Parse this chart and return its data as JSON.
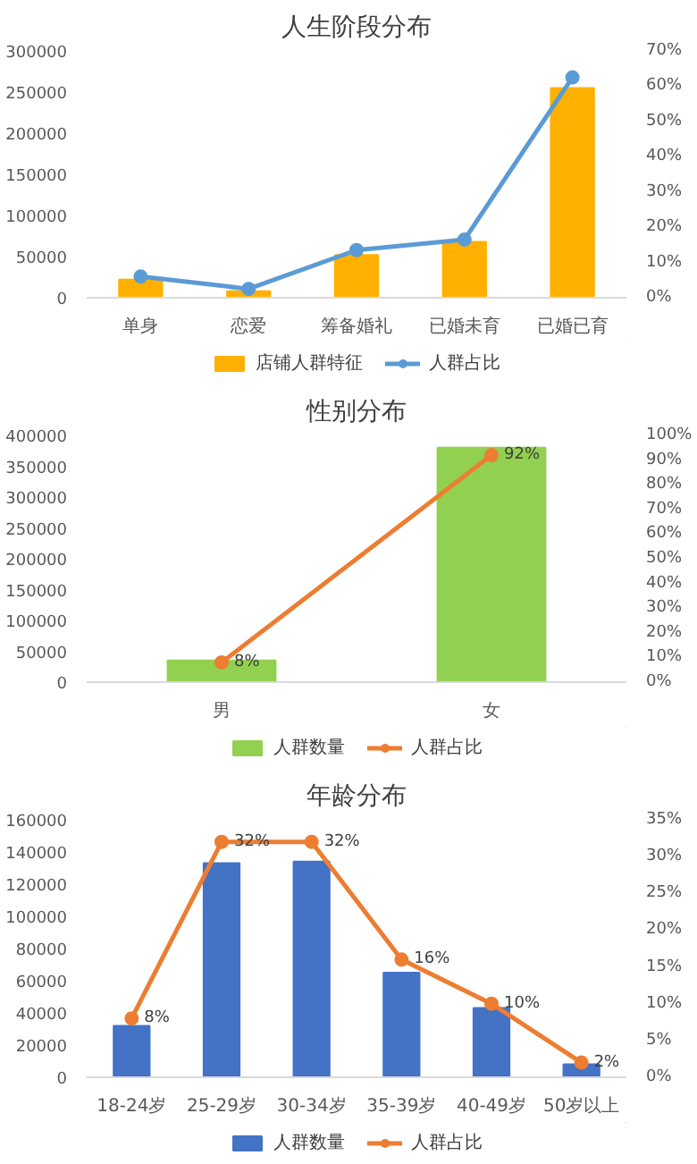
{
  "chart_data": [
    {
      "type": "bar",
      "title": "人生阶段分布",
      "categories": [
        "单身",
        "恋爱",
        "筹备婚礼",
        "已婚未育",
        "已婚已育"
      ],
      "ylim": [
        0,
        300000
      ],
      "yticks": [
        0,
        50000,
        100000,
        150000,
        200000,
        250000,
        300000
      ],
      "y2lim": [
        0,
        70
      ],
      "y2ticks": [
        {
          "value": 0,
          "label": "0%"
        },
        {
          "value": 10,
          "label": "10%"
        },
        {
          "value": 20,
          "label": "20%"
        },
        {
          "value": 30,
          "label": "30%"
        },
        {
          "value": 40,
          "label": "40%"
        },
        {
          "value": 50,
          "label": "50%"
        },
        {
          "value": 60,
          "label": "60%"
        },
        {
          "value": 70,
          "label": "70%"
        }
      ],
      "legend": "bottom",
      "grid": false,
      "series": [
        {
          "name": "店铺人群特征",
          "color": "#ffb000",
          "values": [
            22000,
            8000,
            52000,
            68000,
            255000
          ]
        },
        {
          "name": "人群占比",
          "type": "line",
          "axis": "y2",
          "marker": "circle",
          "color": "#5b9bd5",
          "values": [
            6,
            2.5,
            13.5,
            16.5,
            62.5
          ]
        }
      ]
    },
    {
      "type": "bar",
      "title": "性别分布",
      "categories": [
        "男",
        "女"
      ],
      "ylim": [
        0,
        400000
      ],
      "yticks": [
        0,
        50000,
        100000,
        150000,
        200000,
        250000,
        300000,
        350000,
        400000
      ],
      "y2lim": [
        0,
        100
      ],
      "y2ticks": [
        {
          "value": 0,
          "label": "0%"
        },
        {
          "value": 10,
          "label": "10%"
        },
        {
          "value": 20,
          "label": "20%"
        },
        {
          "value": 30,
          "label": "30%"
        },
        {
          "value": 40,
          "label": "40%"
        },
        {
          "value": 50,
          "label": "50%"
        },
        {
          "value": 60,
          "label": "60%"
        },
        {
          "value": 70,
          "label": "70%"
        },
        {
          "value": 80,
          "label": "80%"
        },
        {
          "value": 90,
          "label": "90%"
        },
        {
          "value": 100,
          "label": "100%"
        }
      ],
      "legend": "bottom",
      "grid": false,
      "series": [
        {
          "name": "人群数量",
          "color": "#92d050",
          "values": [
            35000,
            380000
          ]
        },
        {
          "name": "人群占比",
          "type": "line",
          "axis": "y2",
          "marker": "circle",
          "color": "#ed7d31",
          "values": [
            8,
            92
          ],
          "value_labels": [
            "8%",
            "92%"
          ]
        }
      ]
    },
    {
      "type": "bar",
      "title": "年龄分布",
      "categories": [
        "18-24岁",
        "25-29岁",
        "30-34岁",
        "35-39岁",
        "40-49岁",
        "50岁以上"
      ],
      "ylim": [
        0,
        160000
      ],
      "yticks": [
        0,
        20000,
        40000,
        60000,
        80000,
        100000,
        120000,
        140000,
        160000
      ],
      "y2lim": [
        0,
        35
      ],
      "y2ticks": [
        {
          "value": 0,
          "label": "0%"
        },
        {
          "value": 5,
          "label": "5%"
        },
        {
          "value": 10,
          "label": "10%"
        },
        {
          "value": 15,
          "label": "15%"
        },
        {
          "value": 20,
          "label": "20%"
        },
        {
          "value": 25,
          "label": "25%"
        },
        {
          "value": 30,
          "label": "30%"
        },
        {
          "value": 35,
          "label": "35%"
        }
      ],
      "legend": "bottom",
      "grid": false,
      "series": [
        {
          "name": "人群数量",
          "color": "#4472c4",
          "values": [
            32000,
            133000,
            134000,
            65000,
            43000,
            8000
          ]
        },
        {
          "name": "人群占比",
          "type": "line",
          "axis": "y2",
          "marker": "circle",
          "color": "#ed7d31",
          "values": [
            8,
            32,
            32,
            16,
            10,
            2
          ],
          "value_labels": [
            "8%",
            "32%",
            "32%",
            "16%",
            "10%",
            "2%"
          ]
        }
      ]
    }
  ]
}
